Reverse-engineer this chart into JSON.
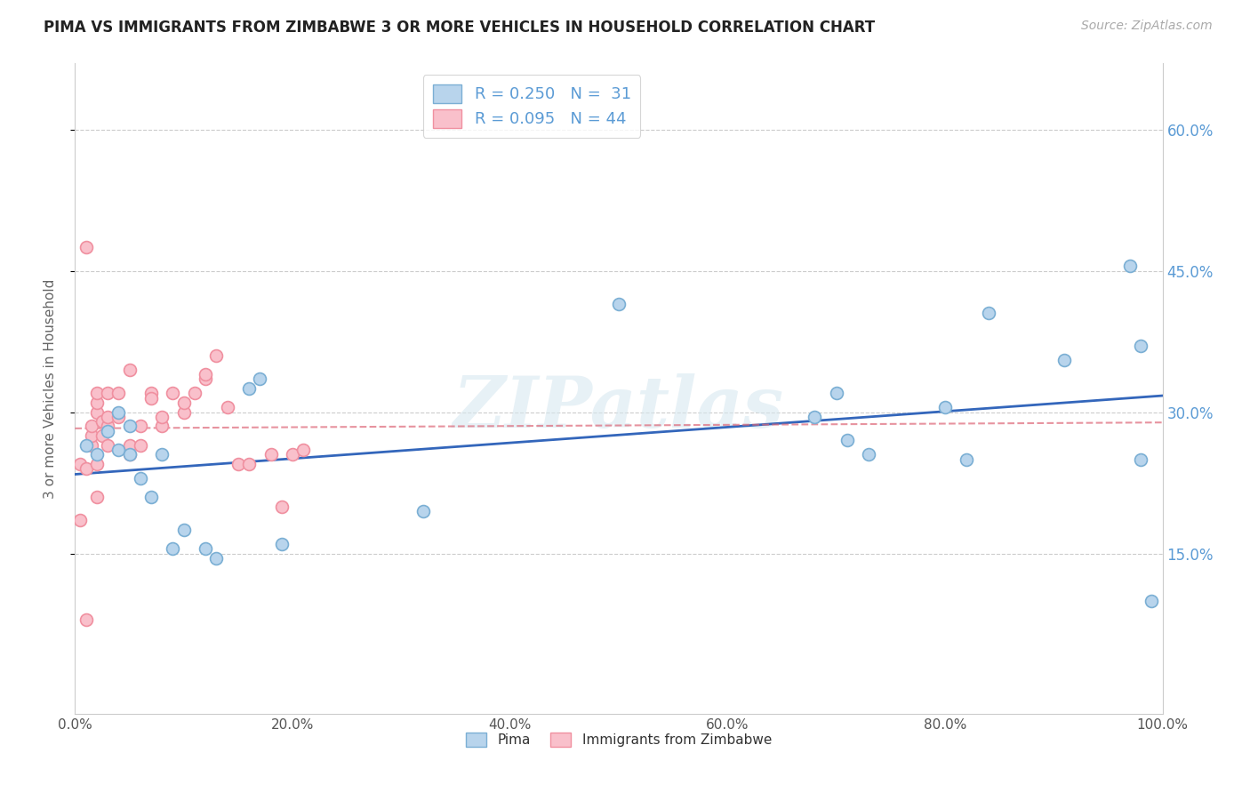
{
  "title": "PIMA VS IMMIGRANTS FROM ZIMBABWE 3 OR MORE VEHICLES IN HOUSEHOLD CORRELATION CHART",
  "source_text": "Source: ZipAtlas.com",
  "ylabel": "3 or more Vehicles in Household",
  "xlim": [
    0.0,
    1.0
  ],
  "ylim": [
    -0.02,
    0.67
  ],
  "xtick_labels": [
    "0.0%",
    "20.0%",
    "40.0%",
    "60.0%",
    "80.0%",
    "100.0%"
  ],
  "xtick_vals": [
    0.0,
    0.2,
    0.4,
    0.6,
    0.8,
    1.0
  ],
  "ytick_labels": [
    "15.0%",
    "30.0%",
    "45.0%",
    "60.0%"
  ],
  "ytick_vals": [
    0.15,
    0.3,
    0.45,
    0.6
  ],
  "background_color": "#ffffff",
  "watermark_text": "ZIPatlas",
  "legend_R1": "R = 0.250",
  "legend_N1": "N =  31",
  "legend_R2": "R = 0.095",
  "legend_N2": "N = 44",
  "color_pima": "#b8d4ec",
  "color_zimb": "#f9c0cb",
  "edge_pima": "#7bafd4",
  "edge_zimb": "#f090a0",
  "trendline_color_pima": "#3366bb",
  "trendline_color_zimb": "#dd6677",
  "pima_x": [
    0.01,
    0.02,
    0.03,
    0.04,
    0.04,
    0.05,
    0.05,
    0.06,
    0.07,
    0.08,
    0.09,
    0.1,
    0.12,
    0.13,
    0.16,
    0.17,
    0.19,
    0.32,
    0.5,
    0.68,
    0.7,
    0.71,
    0.73,
    0.8,
    0.82,
    0.84,
    0.91,
    0.97,
    0.98,
    0.98,
    0.99
  ],
  "pima_y": [
    0.265,
    0.255,
    0.28,
    0.3,
    0.26,
    0.285,
    0.255,
    0.23,
    0.21,
    0.255,
    0.155,
    0.175,
    0.155,
    0.145,
    0.325,
    0.335,
    0.16,
    0.195,
    0.415,
    0.295,
    0.32,
    0.27,
    0.255,
    0.305,
    0.25,
    0.405,
    0.355,
    0.455,
    0.37,
    0.25,
    0.1
  ],
  "zimb_x": [
    0.005,
    0.005,
    0.01,
    0.01,
    0.01,
    0.015,
    0.015,
    0.015,
    0.02,
    0.02,
    0.02,
    0.02,
    0.02,
    0.025,
    0.025,
    0.03,
    0.03,
    0.03,
    0.03,
    0.04,
    0.04,
    0.05,
    0.05,
    0.05,
    0.06,
    0.06,
    0.07,
    0.07,
    0.08,
    0.08,
    0.09,
    0.1,
    0.1,
    0.11,
    0.12,
    0.12,
    0.13,
    0.14,
    0.15,
    0.16,
    0.18,
    0.19,
    0.2,
    0.21
  ],
  "zimb_y": [
    0.185,
    0.245,
    0.24,
    0.08,
    0.475,
    0.265,
    0.275,
    0.285,
    0.3,
    0.31,
    0.32,
    0.245,
    0.21,
    0.275,
    0.29,
    0.285,
    0.32,
    0.265,
    0.295,
    0.295,
    0.32,
    0.255,
    0.265,
    0.345,
    0.265,
    0.285,
    0.32,
    0.315,
    0.285,
    0.295,
    0.32,
    0.3,
    0.31,
    0.32,
    0.335,
    0.34,
    0.36,
    0.305,
    0.245,
    0.245,
    0.255,
    0.2,
    0.255,
    0.26
  ]
}
